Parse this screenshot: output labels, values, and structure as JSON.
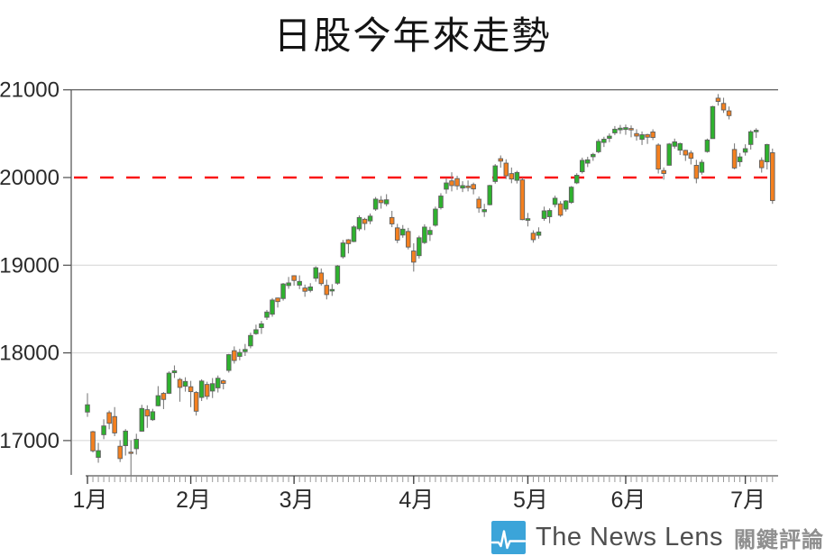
{
  "title": "日股今年來走勢",
  "watermark": {
    "brand": "The News Lens",
    "cjk": "關鍵評論"
  },
  "chart_data": {
    "type": "candlestick",
    "title": "日股今年來走勢",
    "xlabel": "",
    "ylabel": "",
    "y_ticks": [
      17000,
      18000,
      19000,
      20000,
      21000
    ],
    "ylim": [
      16600,
      21000
    ],
    "x_month_labels": [
      "1月",
      "2月",
      "3月",
      "4月",
      "5月",
      "6月",
      "7月"
    ],
    "grid": true,
    "legend": "none",
    "reference_line": {
      "value": 20000,
      "style": "dashed",
      "color": "#fa1414"
    },
    "colors": {
      "up": "#2eb22e",
      "down": "#f4801f",
      "wick": "#7d7d7d",
      "body_border": "#606060",
      "grid": "#d4d4d4",
      "axis": "#4d4d4d",
      "tick_minor": "#999999",
      "tick_major": "#444444",
      "label": "#2b2b2b"
    },
    "columns": [
      "date",
      "open",
      "high",
      "low",
      "close"
    ],
    "candles": [
      [
        "1/5",
        17325,
        17540,
        17270,
        17408
      ],
      [
        "1/6",
        17101,
        17111,
        16864,
        16883
      ],
      [
        "1/7",
        16808,
        16974,
        16747,
        16885
      ],
      [
        "1/8",
        17067,
        17243,
        17016,
        17167
      ],
      [
        "1/9",
        17318,
        17342,
        17129,
        17197
      ],
      [
        "1/13",
        17274,
        17382,
        17050,
        17087
      ],
      [
        "1/14",
        16935,
        17005,
        16755,
        16795
      ],
      [
        "1/15",
        16942,
        17131,
        16829,
        17108
      ],
      [
        "1/16",
        16868,
        17004,
        16592,
        16864
      ],
      [
        "1/19",
        16907,
        17078,
        16840,
        17014
      ],
      [
        "1/20",
        17107,
        17408,
        17101,
        17366
      ],
      [
        "1/21",
        17352,
        17402,
        17145,
        17280
      ],
      [
        "1/22",
        17238,
        17362,
        17224,
        17329
      ],
      [
        "1/23",
        17397,
        17621,
        17390,
        17512
      ],
      [
        "1/26",
        17538,
        17553,
        17359,
        17469
      ],
      [
        "1/27",
        17539,
        17789,
        17531,
        17769
      ],
      [
        "1/28",
        17774,
        17857,
        17714,
        17795
      ],
      [
        "1/29",
        17697,
        17715,
        17443,
        17606
      ],
      [
        "1/30",
        17620,
        17722,
        17558,
        17674
      ],
      [
        "2/2",
        17614,
        17681,
        17381,
        17558
      ],
      [
        "2/3",
        17548,
        17565,
        17285,
        17335
      ],
      [
        "2/4",
        17492,
        17699,
        17451,
        17679
      ],
      [
        "2/5",
        17640,
        17671,
        17468,
        17504
      ],
      [
        "2/6",
        17565,
        17713,
        17485,
        17649
      ],
      [
        "2/9",
        17601,
        17742,
        17548,
        17711
      ],
      [
        "2/10",
        17682,
        17699,
        17584,
        17652
      ],
      [
        "2/12",
        17800,
        17988,
        17775,
        17980
      ],
      [
        "2/13",
        18025,
        18074,
        17878,
        17913
      ],
      [
        "2/16",
        17960,
        18046,
        17915,
        18005
      ],
      [
        "2/17",
        18014,
        18102,
        17965,
        18039
      ],
      [
        "2/18",
        18080,
        18230,
        18052,
        18199
      ],
      [
        "2/19",
        18219,
        18322,
        18206,
        18264
      ],
      [
        "2/20",
        18288,
        18365,
        18216,
        18332
      ],
      [
        "2/23",
        18406,
        18490,
        18376,
        18466
      ],
      [
        "2/24",
        18441,
        18625,
        18412,
        18603
      ],
      [
        "2/25",
        18626,
        18629,
        18517,
        18585
      ],
      [
        "2/26",
        18620,
        18797,
        18596,
        18786
      ],
      [
        "2/27",
        18768,
        18866,
        18731,
        18798
      ],
      [
        "3/2",
        18880,
        18886,
        18767,
        18826
      ],
      [
        "3/3",
        18772,
        18884,
        18727,
        18815
      ],
      [
        "3/4",
        18740,
        18779,
        18640,
        18703
      ],
      [
        "3/5",
        18712,
        18795,
        18690,
        18752
      ],
      [
        "3/6",
        18851,
        18988,
        18812,
        18971
      ],
      [
        "3/9",
        18911,
        18963,
        18767,
        18790
      ],
      [
        "3/10",
        18770,
        18835,
        18610,
        18665
      ],
      [
        "3/11",
        18706,
        18784,
        18650,
        18723
      ],
      [
        "3/12",
        18795,
        19002,
        18777,
        18991
      ],
      [
        "3/13",
        19096,
        19288,
        19076,
        19254
      ],
      [
        "3/16",
        19290,
        19298,
        19134,
        19246
      ],
      [
        "3/17",
        19270,
        19456,
        19262,
        19437
      ],
      [
        "3/18",
        19415,
        19569,
        19390,
        19544
      ],
      [
        "3/19",
        19524,
        19541,
        19400,
        19476
      ],
      [
        "3/20",
        19505,
        19590,
        19468,
        19560
      ],
      [
        "3/23",
        19640,
        19778,
        19620,
        19754
      ],
      [
        "3/24",
        19742,
        19789,
        19645,
        19713
      ],
      [
        "3/25",
        19700,
        19810,
        19672,
        19746
      ],
      [
        "3/26",
        19544,
        19620,
        19434,
        19471
      ],
      [
        "3/27",
        19426,
        19472,
        19252,
        19286
      ],
      [
        "3/30",
        19344,
        19458,
        19313,
        19411
      ],
      [
        "3/31",
        19385,
        19426,
        19180,
        19207
      ],
      [
        "4/1",
        19162,
        19250,
        18927,
        19035
      ],
      [
        "4/2",
        19109,
        19337,
        19076,
        19313
      ],
      [
        "4/3",
        19258,
        19467,
        19242,
        19435
      ],
      [
        "4/6",
        19350,
        19438,
        19276,
        19397
      ],
      [
        "4/7",
        19456,
        19668,
        19440,
        19640
      ],
      [
        "4/8",
        19656,
        19821,
        19635,
        19789
      ],
      [
        "4/9",
        19867,
        19993,
        19816,
        19938
      ],
      [
        "4/10",
        19962,
        20060,
        19842,
        19908
      ],
      [
        "4/13",
        19988,
        20020,
        19859,
        19905
      ],
      [
        "4/14",
        19880,
        19958,
        19834,
        19908
      ],
      [
        "4/15",
        19902,
        19967,
        19842,
        19885
      ],
      [
        "4/16",
        19920,
        19942,
        19808,
        19870
      ],
      [
        "4/17",
        19753,
        19784,
        19598,
        19652
      ],
      [
        "4/20",
        19610,
        19700,
        19551,
        19634
      ],
      [
        "4/21",
        19690,
        19917,
        19682,
        19909
      ],
      [
        "4/22",
        19955,
        20153,
        19930,
        20133
      ],
      [
        "4/23",
        20215,
        20252,
        20112,
        20187
      ],
      [
        "4/24",
        20164,
        20208,
        19983,
        20020
      ],
      [
        "4/27",
        20045,
        20114,
        19935,
        19983
      ],
      [
        "4/28",
        19968,
        20077,
        19932,
        20058
      ],
      [
        "4/30",
        19973,
        19997,
        19513,
        19520
      ],
      [
        "5/1",
        19512,
        19596,
        19442,
        19531
      ],
      [
        "5/7",
        19365,
        19398,
        19257,
        19291
      ],
      [
        "5/8",
        19341,
        19432,
        19303,
        19379
      ],
      [
        "5/11",
        19533,
        19668,
        19506,
        19620
      ],
      [
        "5/12",
        19553,
        19648,
        19479,
        19624
      ],
      [
        "5/13",
        19693,
        19793,
        19659,
        19764
      ],
      [
        "5/14",
        19700,
        19731,
        19551,
        19570
      ],
      [
        "5/15",
        19640,
        19743,
        19611,
        19733
      ],
      [
        "5/18",
        19716,
        19903,
        19700,
        19890
      ],
      [
        "5/19",
        19939,
        20049,
        19925,
        20026
      ],
      [
        "5/20",
        20066,
        20227,
        20046,
        20196
      ],
      [
        "5/21",
        20164,
        20237,
        20119,
        20202
      ],
      [
        "5/22",
        20237,
        20282,
        20190,
        20264
      ],
      [
        "5/25",
        20294,
        20440,
        20277,
        20413
      ],
      [
        "5/26",
        20400,
        20465,
        20348,
        20437
      ],
      [
        "5/27",
        20447,
        20503,
        20403,
        20472
      ],
      [
        "5/28",
        20509,
        20587,
        20484,
        20551
      ],
      [
        "5/29",
        20544,
        20600,
        20498,
        20563
      ],
      [
        "6/1",
        20548,
        20604,
        20487,
        20569
      ],
      [
        "6/2",
        20559,
        20594,
        20459,
        20543
      ],
      [
        "6/3",
        20501,
        20551,
        20421,
        20473
      ],
      [
        "6/4",
        20435,
        20525,
        20371,
        20488
      ],
      [
        "6/5",
        20490,
        20499,
        20383,
        20460
      ],
      [
        "6/8",
        20520,
        20550,
        20427,
        20457
      ],
      [
        "6/9",
        20370,
        20390,
        20046,
        20096
      ],
      [
        "6/10",
        20080,
        20115,
        19976,
        20046
      ],
      [
        "6/11",
        20140,
        20394,
        20137,
        20382
      ],
      [
        "6/12",
        20357,
        20444,
        20330,
        20407
      ],
      [
        "6/15",
        20312,
        20398,
        20257,
        20387
      ],
      [
        "6/16",
        20310,
        20316,
        20189,
        20257
      ],
      [
        "6/17",
        20280,
        20308,
        20149,
        20219
      ],
      [
        "6/18",
        20139,
        20202,
        19934,
        19990
      ],
      [
        "6/19",
        20060,
        20204,
        20033,
        20174
      ],
      [
        "6/22",
        20296,
        20444,
        20283,
        20428
      ],
      [
        "6/23",
        20444,
        20818,
        20442,
        20809
      ],
      [
        "6/24",
        20905,
        20952,
        20820,
        20868
      ],
      [
        "6/25",
        20845,
        20910,
        20737,
        20771
      ],
      [
        "6/26",
        20760,
        20810,
        20663,
        20706
      ],
      [
        "6/29",
        20320,
        20389,
        20094,
        20109
      ],
      [
        "6/30",
        20180,
        20280,
        20125,
        20235
      ],
      [
        "7/1",
        20289,
        20379,
        20250,
        20329
      ],
      [
        "7/2",
        20377,
        20540,
        20319,
        20522
      ],
      [
        "7/3",
        20522,
        20562,
        20451,
        20539
      ],
      [
        "7/6",
        20196,
        20230,
        20056,
        20112
      ],
      [
        "7/7",
        20179,
        20385,
        20092,
        20376
      ],
      [
        "7/8",
        20283,
        20330,
        19700,
        19737
      ]
    ]
  }
}
